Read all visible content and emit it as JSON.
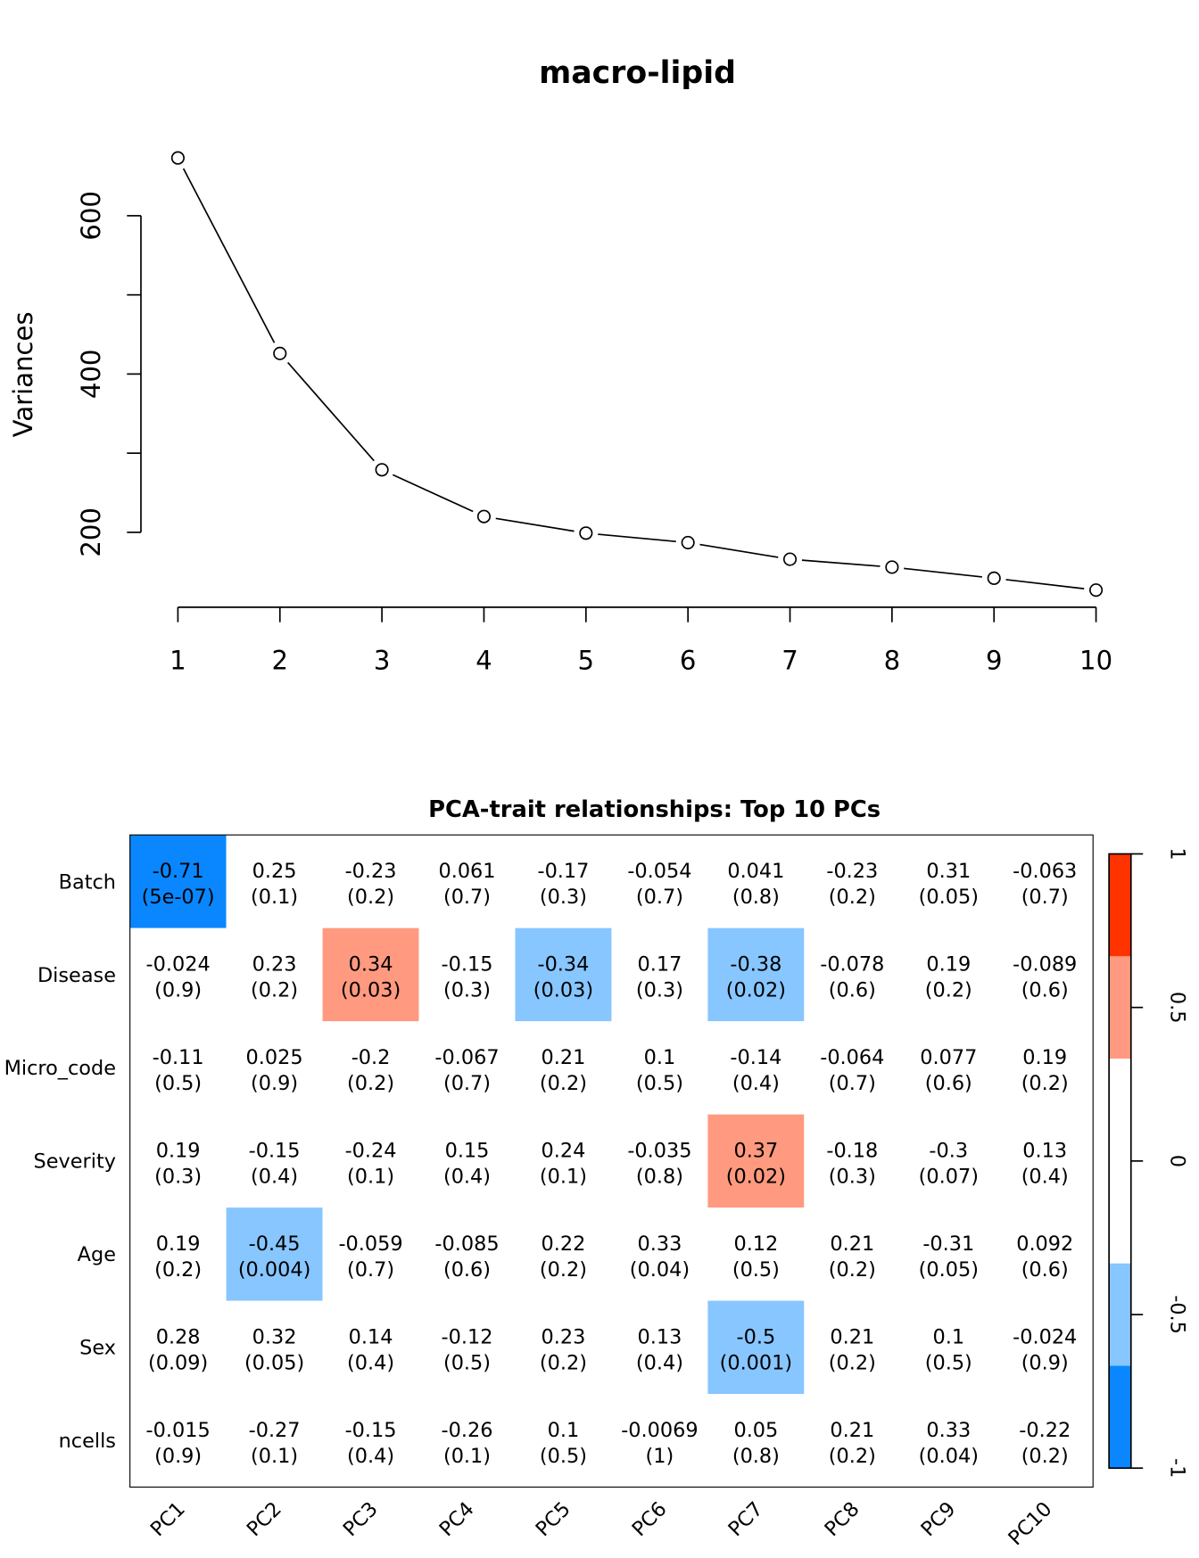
{
  "chart_data": [
    {
      "type": "line",
      "title": "macro-lipid",
      "xlabel": "",
      "ylabel": "Variances",
      "x": [
        1,
        2,
        3,
        4,
        5,
        6,
        7,
        8,
        9,
        10
      ],
      "y": [
        673,
        426,
        279,
        220,
        199,
        187,
        166,
        156,
        142,
        127
      ],
      "marker": "open-circle",
      "x_ticks": [
        "1",
        "2",
        "3",
        "4",
        "5",
        "6",
        "7",
        "8",
        "9",
        "10"
      ],
      "y_ticks": [
        200,
        300,
        400,
        500,
        600
      ],
      "y_tick_labels": [
        "200",
        "",
        "400",
        "",
        "600"
      ],
      "grid": false
    },
    {
      "type": "heatmap",
      "title": "PCA-trait relationships: Top 10 PCs",
      "columns": [
        "PC1",
        "PC2",
        "PC3",
        "PC4",
        "PC5",
        "PC6",
        "PC7",
        "PC8",
        "PC9",
        "PC10"
      ],
      "rows": [
        "Batch",
        "Disease",
        "Micro_code",
        "Severity",
        "Age",
        "Sex",
        "ncells"
      ],
      "correlations": [
        [
          "-0.71",
          "0.25",
          "-0.23",
          "0.061",
          "-0.17",
          "-0.054",
          "0.041",
          "-0.23",
          "0.31",
          "-0.063"
        ],
        [
          "-0.024",
          "0.23",
          "0.34",
          "-0.15",
          "-0.34",
          "0.17",
          "-0.38",
          "-0.078",
          "0.19",
          "-0.089"
        ],
        [
          "-0.11",
          "0.025",
          "-0.2",
          "-0.067",
          "0.21",
          "0.1",
          "-0.14",
          "-0.064",
          "0.077",
          "0.19"
        ],
        [
          "0.19",
          "-0.15",
          "-0.24",
          "0.15",
          "0.24",
          "-0.035",
          "0.37",
          "-0.18",
          "-0.3",
          "0.13"
        ],
        [
          "0.19",
          "-0.45",
          "-0.059",
          "-0.085",
          "0.22",
          "0.33",
          "0.12",
          "0.21",
          "-0.31",
          "0.092"
        ],
        [
          "0.28",
          "0.32",
          "0.14",
          "-0.12",
          "0.23",
          "0.13",
          "-0.5",
          "0.21",
          "0.1",
          "-0.024"
        ],
        [
          "-0.015",
          "-0.27",
          "-0.15",
          "-0.26",
          "0.1",
          "-0.0069",
          "0.05",
          "0.21",
          "0.33",
          "-0.22"
        ]
      ],
      "pvalues": [
        [
          "(5e-07)",
          "(0.1)",
          "(0.2)",
          "(0.7)",
          "(0.3)",
          "(0.7)",
          "(0.8)",
          "(0.2)",
          "(0.05)",
          "(0.7)"
        ],
        [
          "(0.9)",
          "(0.2)",
          "(0.03)",
          "(0.3)",
          "(0.03)",
          "(0.3)",
          "(0.02)",
          "(0.6)",
          "(0.2)",
          "(0.6)"
        ],
        [
          "(0.5)",
          "(0.9)",
          "(0.2)",
          "(0.7)",
          "(0.2)",
          "(0.5)",
          "(0.4)",
          "(0.7)",
          "(0.6)",
          "(0.2)"
        ],
        [
          "(0.3)",
          "(0.4)",
          "(0.1)",
          "(0.4)",
          "(0.1)",
          "(0.8)",
          "(0.02)",
          "(0.3)",
          "(0.07)",
          "(0.4)"
        ],
        [
          "(0.2)",
          "(0.004)",
          "(0.7)",
          "(0.6)",
          "(0.2)",
          "(0.04)",
          "(0.5)",
          "(0.2)",
          "(0.05)",
          "(0.6)"
        ],
        [
          "(0.09)",
          "(0.05)",
          "(0.4)",
          "(0.5)",
          "(0.2)",
          "(0.4)",
          "(0.001)",
          "(0.2)",
          "(0.5)",
          "(0.9)"
        ],
        [
          "(0.9)",
          "(0.1)",
          "(0.4)",
          "(0.1)",
          "(0.5)",
          "(1)",
          "(0.8)",
          "(0.2)",
          "(0.04)",
          "(0.2)"
        ]
      ],
      "color_scale": {
        "range": [
          -1,
          1
        ],
        "ticks": [
          "1",
          "0.5",
          "0",
          "-0.5",
          "-1"
        ],
        "bins": [
          {
            "from": -1,
            "to": -0.6667,
            "color": "#0a87ff"
          },
          {
            "from": -0.6667,
            "to": -0.3333,
            "color": "#87c6ff"
          },
          {
            "from": -0.3333,
            "to": 0.3333,
            "color": "#ffffff"
          },
          {
            "from": 0.3333,
            "to": 0.6667,
            "color": "#ff9a80"
          },
          {
            "from": 0.6667,
            "to": 1,
            "color": "#ff3300"
          }
        ]
      },
      "legend": "right"
    }
  ]
}
